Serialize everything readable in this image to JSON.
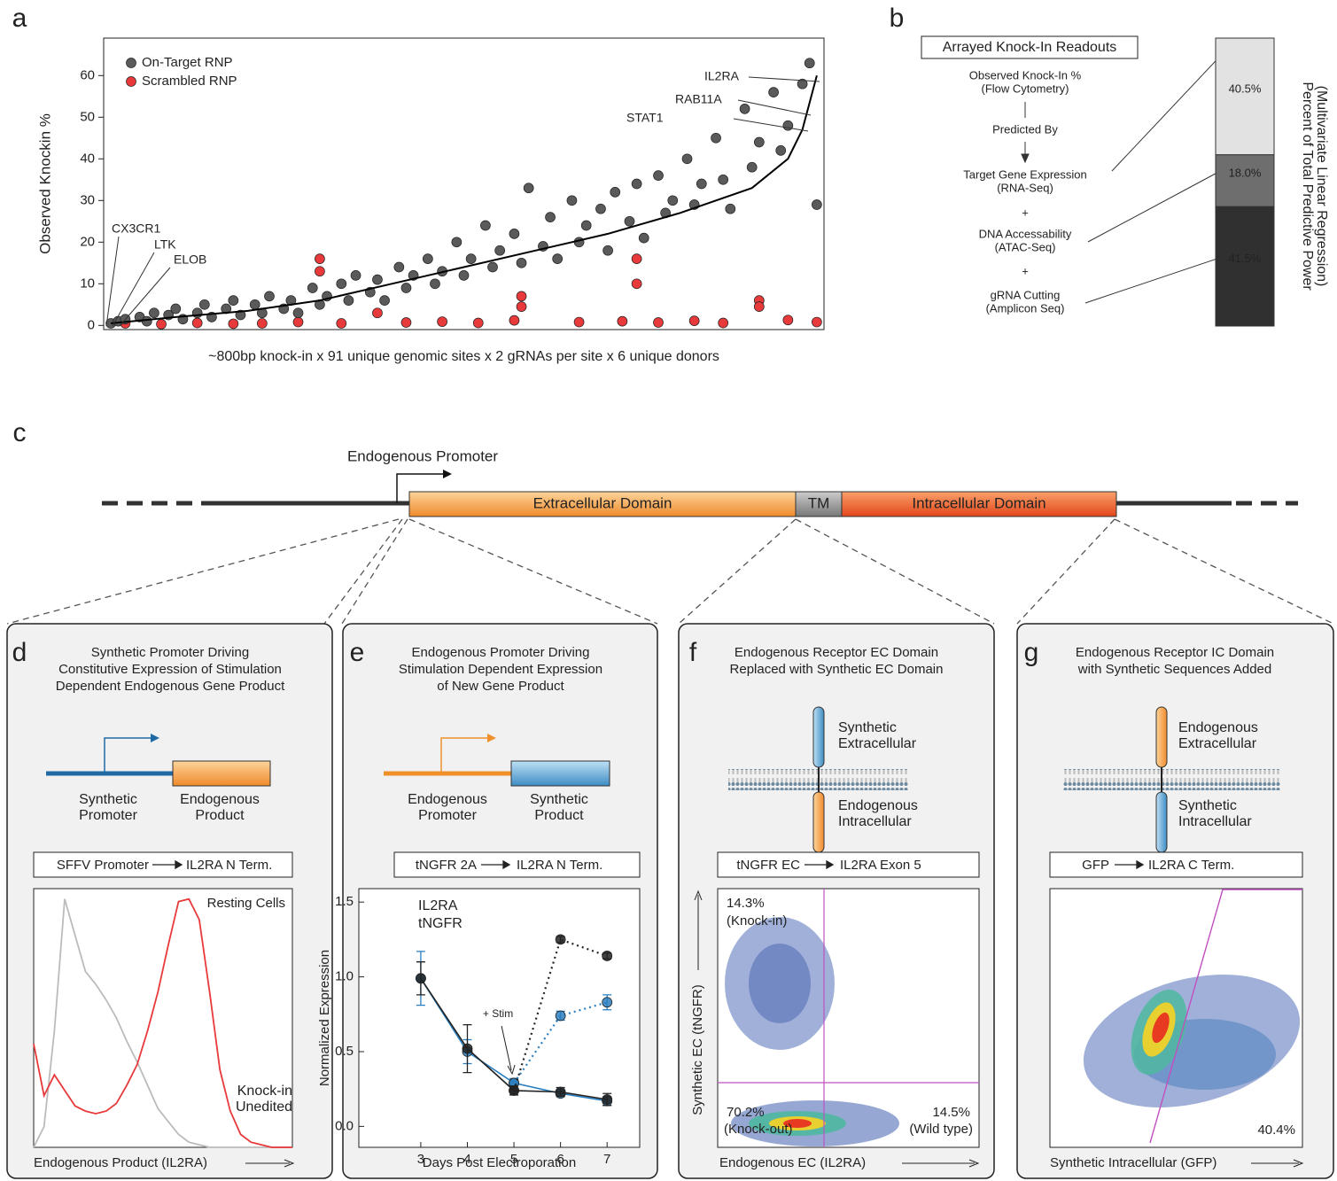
{
  "panel_labels": [
    "a",
    "b",
    "c",
    "d",
    "e",
    "f",
    "g"
  ],
  "chart_data": [
    {
      "type": "scatter",
      "ylabel": "Observed Knockin %",
      "xlabel": "~800bp knock-in x 91 unique genomic sites x 2 gRNAs per site x 6 unique donors",
      "xlim": [
        0,
        100
      ],
      "ylim": [
        -1,
        69
      ],
      "yticks": [
        0,
        10,
        20,
        30,
        40,
        50,
        60
      ],
      "legend": "upper left",
      "series": [
        {
          "name": "On-Target RNP",
          "color": "#5a5a5a",
          "x": [
            1,
            2,
            3,
            5,
            6,
            7,
            9,
            10,
            11,
            13,
            14,
            15,
            17,
            18,
            19,
            21,
            22,
            23,
            25,
            26,
            27,
            29,
            30,
            31,
            33,
            34,
            35,
            37,
            38,
            39,
            41,
            42,
            43,
            45,
            46,
            47,
            49,
            50,
            51,
            53,
            54,
            55,
            57,
            58,
            59,
            61,
            62,
            63,
            65,
            66,
            67,
            69,
            70,
            71,
            73,
            74,
            75,
            77,
            78,
            79,
            81,
            82,
            83,
            85,
            86,
            87,
            89,
            90,
            91,
            93,
            94,
            95,
            97,
            98,
            99
          ],
          "values": [
            0.5,
            1,
            1.5,
            2,
            1,
            3,
            2.5,
            4,
            1.5,
            3,
            5,
            2,
            4,
            6,
            2.5,
            5,
            3,
            7,
            4,
            6,
            3,
            9,
            5,
            7,
            10,
            6,
            12,
            8,
            11,
            6,
            14,
            9,
            12,
            16,
            10,
            13,
            20,
            12,
            16,
            24,
            14,
            18,
            22,
            15,
            33,
            19,
            26,
            16,
            30,
            20,
            24,
            28,
            18,
            32,
            25,
            34,
            21,
            36,
            27,
            30,
            40,
            29,
            34,
            45,
            35,
            28,
            52,
            38,
            44,
            56,
            42,
            48,
            58,
            63,
            29
          ]
        },
        {
          "name": "Scrambled RNP",
          "color": "#e8393b",
          "x": [
            3,
            8,
            13,
            18,
            22,
            27,
            30,
            30,
            33,
            38,
            42,
            47,
            52,
            57,
            58,
            58,
            66,
            72,
            74,
            74,
            77,
            82,
            86,
            91,
            91,
            95,
            99
          ],
          "values": [
            0.5,
            0.3,
            0.6,
            0.4,
            0.5,
            0.8,
            16,
            13,
            0.5,
            3,
            0.7,
            0.9,
            0.6,
            1.2,
            7,
            4.5,
            0.8,
            1,
            16,
            10,
            0.7,
            1.1,
            0.6,
            6,
            4.5,
            1.3,
            0.8
          ]
        }
      ],
      "trend": {
        "color": "#000000",
        "x": [
          1,
          10,
          20,
          30,
          40,
          50,
          60,
          70,
          80,
          90,
          95,
          97,
          99
        ],
        "values": [
          0.5,
          2,
          3.5,
          6,
          10,
          14,
          18,
          22,
          27,
          33,
          40,
          47,
          60
        ]
      },
      "annotations": [
        "IL2RA",
        "RAB11A",
        "STAT1",
        "CX3CR1",
        "LTK",
        "ELOB"
      ]
    },
    {
      "type": "stacked_bar",
      "title": "Arrayed Knock-In Readouts",
      "ylabel": [
        "Percent of Total Predictive Power",
        "(Multivariate Linear Regression)"
      ],
      "ylim": [
        0,
        100
      ],
      "values": [
        41.5,
        18.0,
        40.5
      ],
      "value_labels": [
        "41.5%",
        "18.0%",
        "40.5%"
      ],
      "colors": [
        "#303030",
        "#6e6e6e",
        "#e2e2e2"
      ],
      "readout": [
        "Observed Knock-In %",
        "(Flow Cytometry)"
      ],
      "predicted_by": "Predicted By",
      "joiner": "+",
      "predictors": [
        {
          "label": "gRNA Cutting",
          "method": "(Amplicon Seq)",
          "color": "#333333"
        },
        {
          "label": "DNA Accessability",
          "method": "(ATAC-Seq)",
          "color": "#555555"
        },
        {
          "label": "Target Gene Expression",
          "method": "(RNA-Seq)",
          "color": "#999999"
        }
      ]
    },
    {
      "type": "line",
      "xlabel": "Endogenous Product (IL2RA)",
      "annotation": "Resting Cells",
      "xlim": [
        0,
        100
      ],
      "ylim": [
        0,
        100
      ],
      "x": [
        0,
        4,
        8,
        12,
        16,
        20,
        24,
        28,
        32,
        36,
        40,
        44,
        48,
        52,
        56,
        60,
        64,
        68,
        72,
        76,
        80,
        84,
        88,
        92,
        96,
        100
      ],
      "series": [
        {
          "name": "Knock-in",
          "color": "#e8393b",
          "values": [
            40,
            20,
            28,
            22,
            16,
            14,
            13,
            14,
            17,
            24,
            32,
            45,
            60,
            78,
            95,
            96,
            88,
            60,
            30,
            14,
            5,
            2,
            1,
            0,
            0,
            0
          ]
        },
        {
          "name": "Unedited",
          "color": "#bbbbbb",
          "values": [
            0,
            8,
            45,
            96,
            82,
            68,
            63,
            57,
            50,
            41,
            33,
            24,
            15,
            10,
            5,
            2,
            1,
            0,
            0,
            0,
            0,
            0,
            0,
            0,
            0,
            0
          ]
        }
      ]
    },
    {
      "type": "line",
      "xlabel": "Days Post Electroporation",
      "ylabel": "Normalized Expression",
      "annotation": "+ Stim",
      "x": [
        3,
        4,
        5,
        6,
        7
      ],
      "xlim": [
        1.67,
        7.7
      ],
      "ylim": [
        -0.14,
        1.59
      ],
      "xticks": [
        3,
        4,
        5,
        6,
        7
      ],
      "yticks": [
        {
          "value": 0,
          "label": "0.0"
        },
        0.5,
        {
          "value": 1,
          "label": "1.0"
        },
        1.5
      ],
      "markers": true,
      "series": [
        {
          "name": "IL2RA",
          "color": "#222222",
          "values": [
            0.99,
            0.52,
            0.24,
            0.23,
            0.18
          ],
          "errors": [
            0.11,
            0.16,
            0.03,
            0.03,
            0.04
          ],
          "stim_values": [
            null,
            null,
            0.24,
            1.25,
            1.14
          ],
          "stim_errors": [
            null,
            null,
            null,
            0.02,
            0.02
          ]
        },
        {
          "name": "tNGFR",
          "color": "#2a7fc0",
          "values": [
            0.99,
            0.5,
            0.29,
            0.22,
            0.17
          ],
          "errors": [
            0.18,
            0.08,
            0.03,
            0.02,
            0.03
          ],
          "stim_values": [
            null,
            null,
            0.29,
            0.74,
            0.83
          ],
          "stim_errors": [
            null,
            null,
            null,
            0.03,
            0.05
          ]
        }
      ]
    }
  ],
  "gene_diagram": {
    "promoter": "Endogenous Promoter",
    "domains": [
      "Extracellular Domain",
      "TM",
      "Intracellular Domain"
    ]
  },
  "panels": [
    {
      "title": [
        "Synthetic Promoter Driving",
        "Constitutive Expression of Stimulation",
        "Dependent Endogenous Gene Product"
      ],
      "cartoon": [
        {
          "lines": [
            "Synthetic",
            "Promoter"
          ],
          "color": "#1f6aa5"
        },
        {
          "lines": [
            "Endogenous",
            "Product"
          ],
          "color": "#e8641e"
        }
      ],
      "construct": [
        "SFFV Promoter",
        "IL2RA N Term."
      ]
    },
    {
      "title": [
        "Endogenous Promoter Driving",
        "Stimulation Dependent Expression",
        "of New Gene Product"
      ],
      "cartoon": [
        {
          "lines": [
            "Endogenous",
            "Promoter"
          ],
          "color": "#e8641e"
        },
        {
          "lines": [
            "Synthetic",
            "Product"
          ],
          "color": "#1f6aa5"
        }
      ],
      "construct": [
        "tNGFR 2A",
        "IL2RA N Term."
      ]
    },
    {
      "title": [
        "Endogenous Receptor EC Domain",
        "Replaced with Synthetic EC Domain"
      ],
      "cartoon": [
        {
          "lines": [
            "Synthetic",
            "Extracellular"
          ],
          "color": "#1f6aa5"
        },
        {
          "lines": [
            "Endogenous",
            "Intracellular"
          ],
          "color": "#e8641e"
        }
      ],
      "construct": [
        "tNGFR EC",
        "IL2RA Exon 5"
      ]
    },
    {
      "title": [
        "Endogenous Receptor IC Domain",
        "with Synthetic Sequences Added"
      ],
      "cartoon": [
        {
          "lines": [
            "Endogenous",
            "Extracellular"
          ],
          "color": "#e8641e"
        },
        {
          "lines": [
            "Synthetic",
            "Intracellular"
          ],
          "color": "#1f6aa5"
        }
      ],
      "construct": [
        "GFP",
        "IL2RA C Term."
      ]
    }
  ],
  "flow": [
    {
      "xlabel": "Endogenous EC (IL2RA)",
      "ylabel": "Synthetic EC (tNGFR)",
      "gates": [
        [
          "14.3%",
          "(Knock-in)"
        ],
        [
          "70.2%",
          "(Knock-out)"
        ],
        [
          "14.5%",
          "(Wild type)"
        ]
      ]
    },
    {
      "xlabel": "Synthetic Intracellular (GFP)",
      "gates": [
        [
          "40.4%"
        ]
      ]
    }
  ]
}
